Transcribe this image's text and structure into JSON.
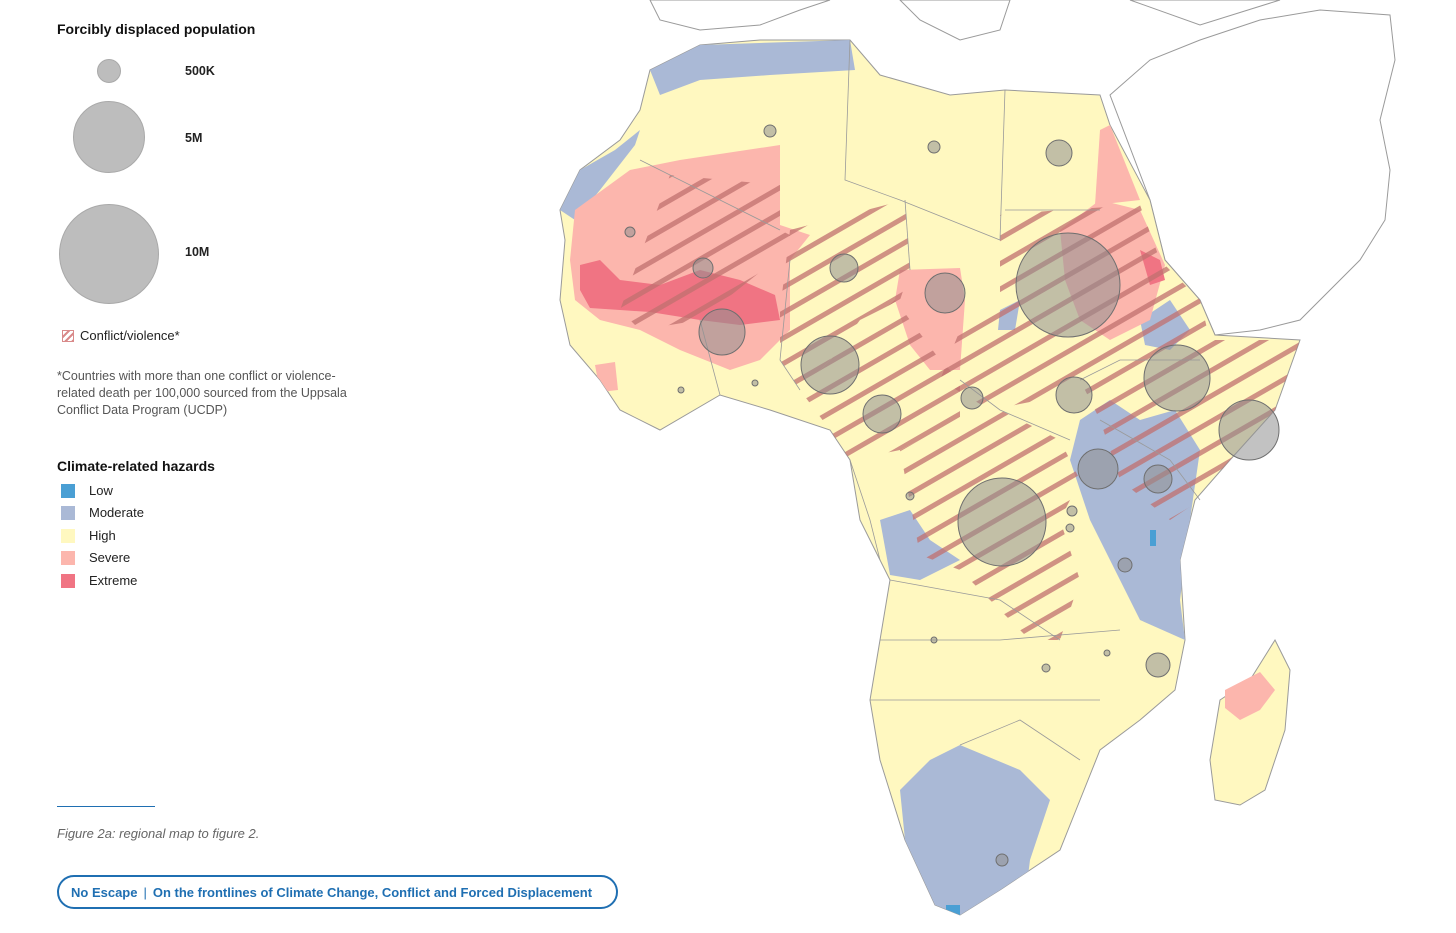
{
  "legend": {
    "population_title": "Forcibly displaced population",
    "sizes": [
      "500K",
      "5M",
      "10M"
    ],
    "conflict_label": "Conflict/violence*",
    "note": "*Countries with more than one conflict or violence-related death per 100,000 sourced from the Uppsala Conflict Data Program (UCDP)",
    "hazards_title": "Climate-related hazards",
    "hazards": [
      {
        "label": "Low",
        "color": "#4a9fd4"
      },
      {
        "label": "Moderate",
        "color": "#aab9d6"
      },
      {
        "label": "High",
        "color": "#fff8c0"
      },
      {
        "label": "Severe",
        "color": "#fcb6ad"
      },
      {
        "label": "Extreme",
        "color": "#f07483"
      }
    ]
  },
  "caption": "Figure 2a: regional map to figure 2.",
  "footer": {
    "brand": "No Escape",
    "separator": "|",
    "title": "On the frontlines of Climate Change, Conflict and Forced Displacement"
  },
  "colors": {
    "accent": "#1f6fb2",
    "circle": "#8f8f8f",
    "hatch": "#c77b7b",
    "border": "#9a9a9a"
  }
}
